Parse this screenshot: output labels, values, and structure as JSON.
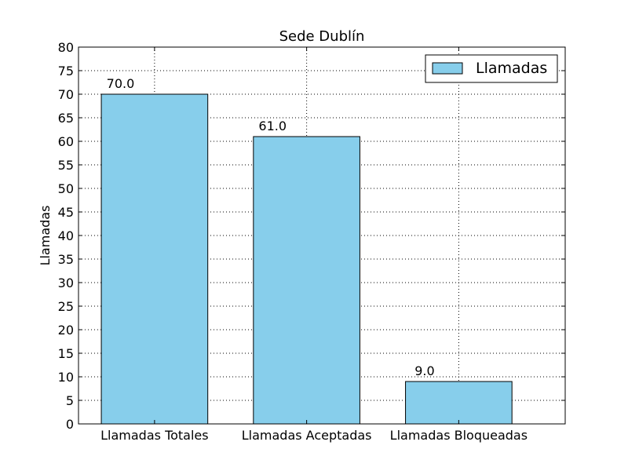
{
  "chart_data": {
    "type": "bar",
    "title": "Sede Dublín",
    "xlabel": "",
    "ylabel": "Llamadas",
    "categories": [
      "Llamadas Totales",
      "Llamadas Aceptadas",
      "Llamadas Bloqueadas"
    ],
    "series": [
      {
        "name": "Llamadas",
        "values": [
          70.0,
          61.0,
          9.0
        ],
        "value_labels": [
          "70.0",
          "61.0",
          "9.0"
        ],
        "color": "#87ceeb"
      }
    ],
    "ylim": [
      0,
      80
    ],
    "yticks": [
      "0",
      "5",
      "10",
      "15",
      "20",
      "25",
      "30",
      "35",
      "40",
      "45",
      "50",
      "55",
      "60",
      "65",
      "70",
      "75",
      "80"
    ],
    "grid": true,
    "legend_position": "top-right"
  }
}
